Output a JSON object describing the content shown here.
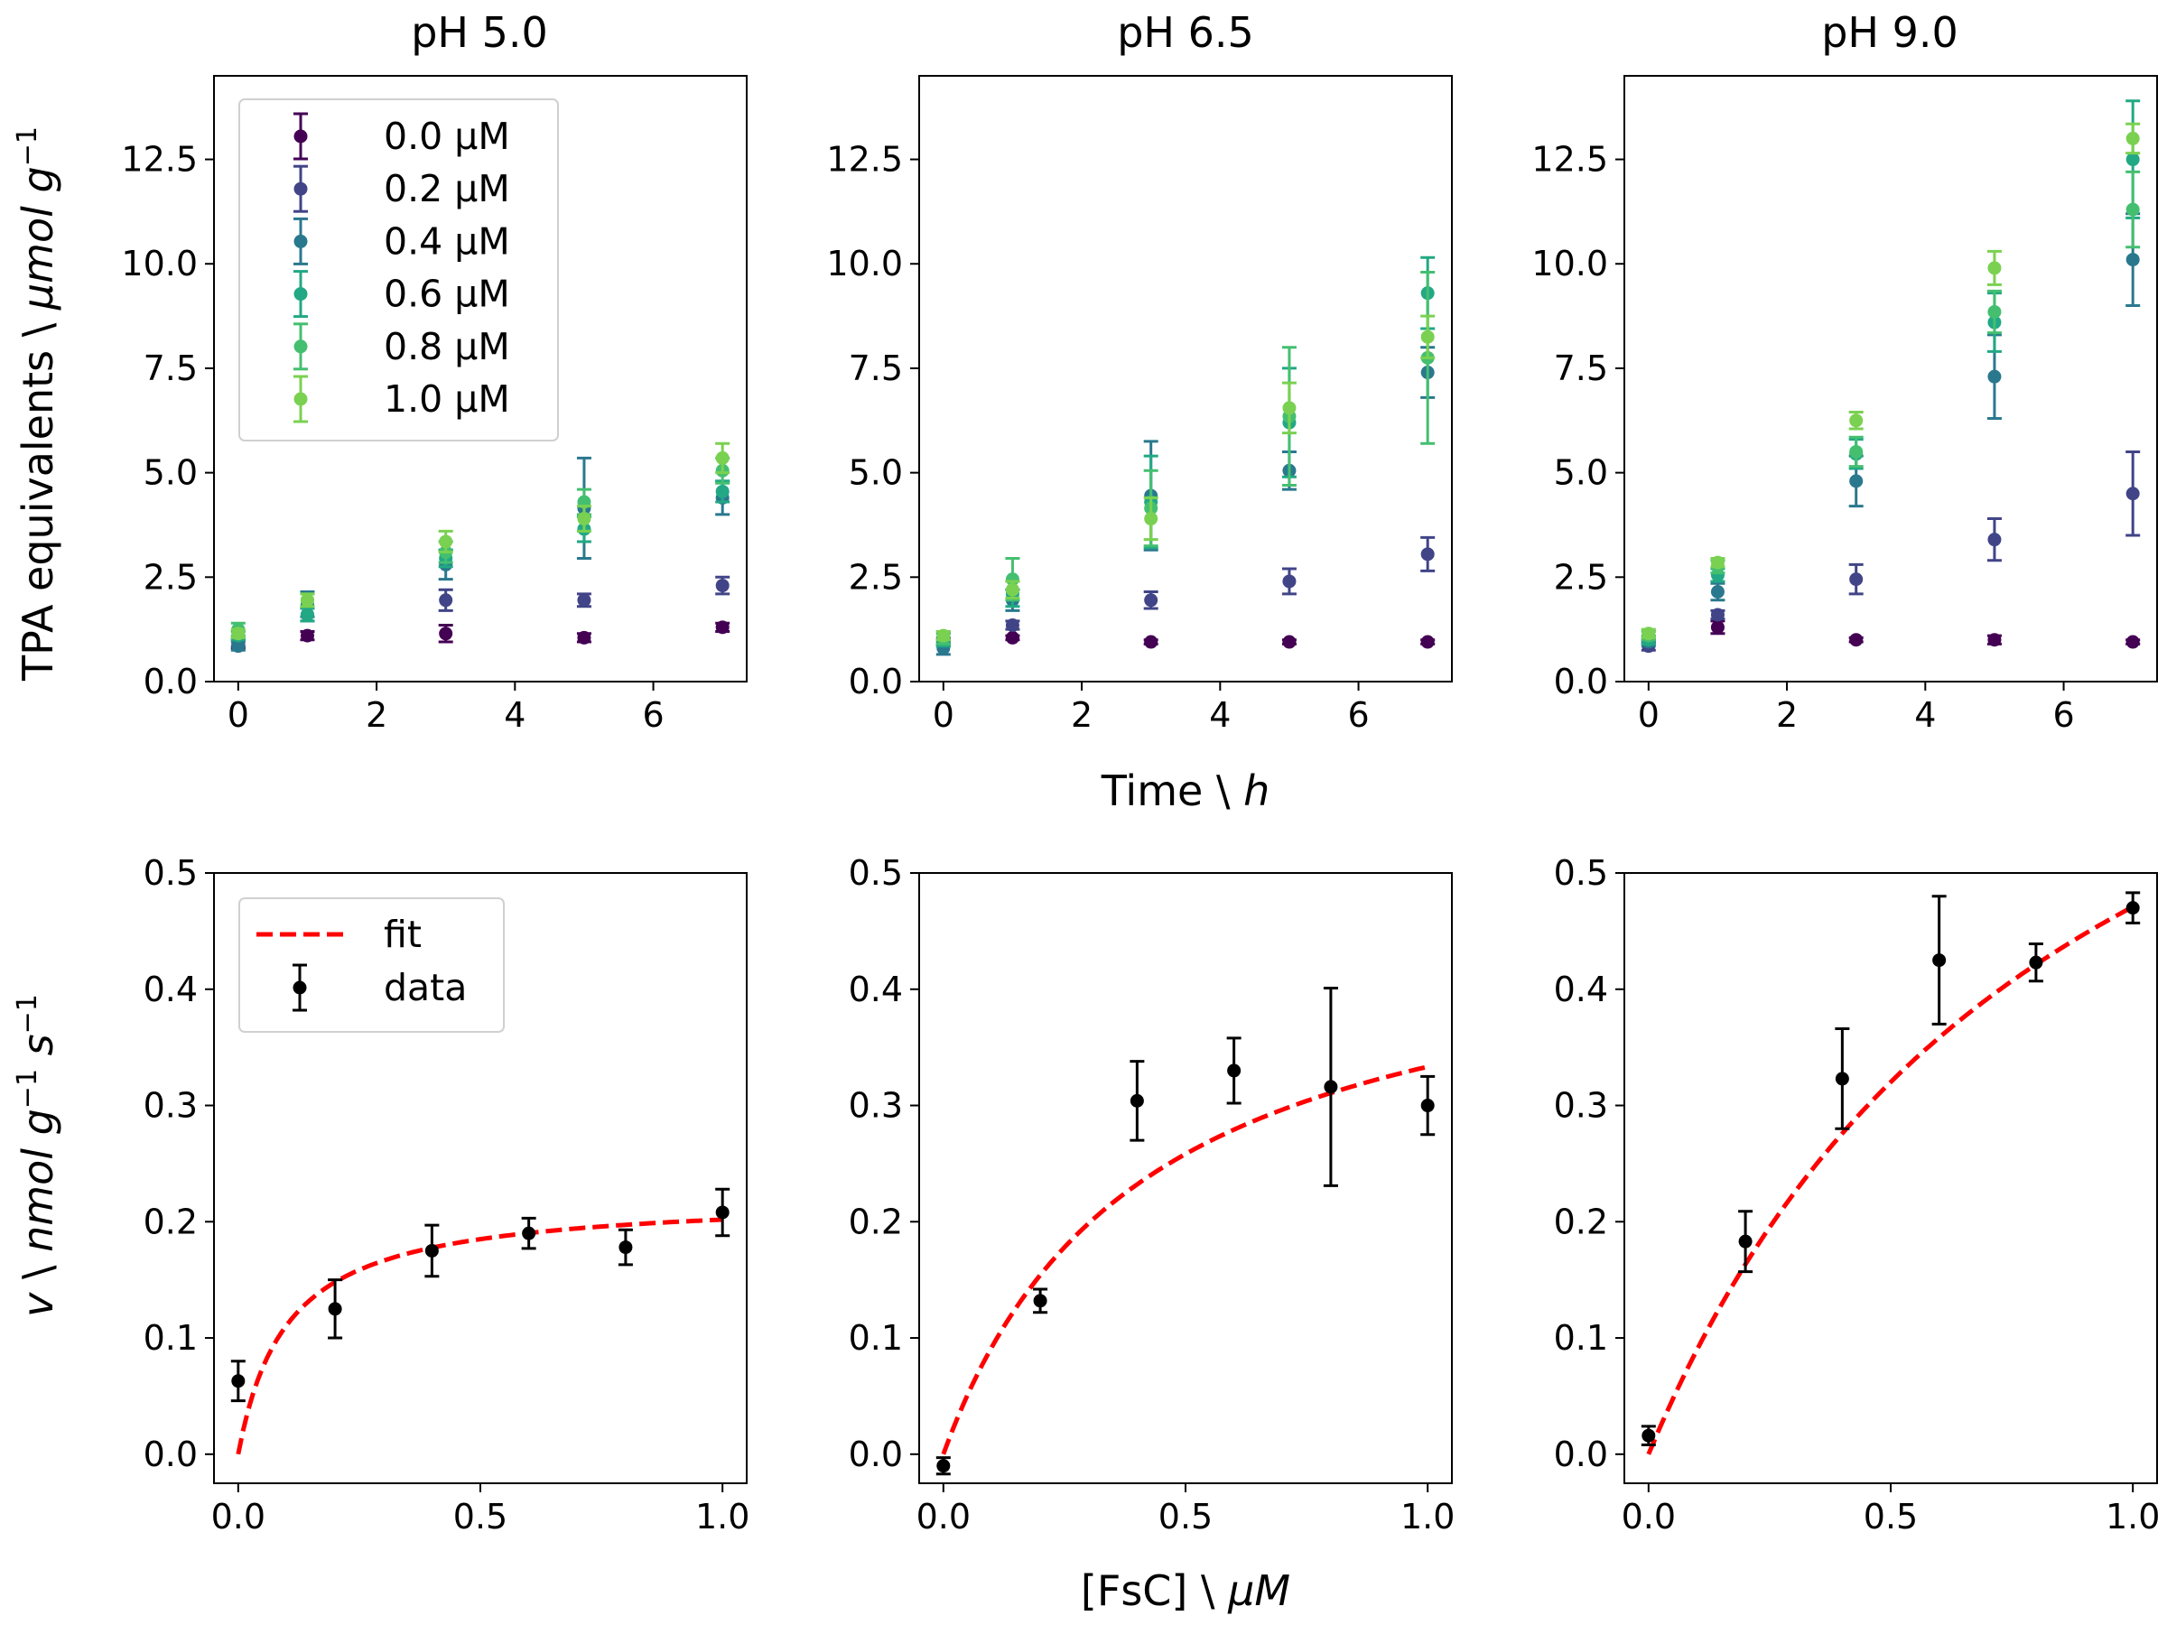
{
  "figure": {
    "top_ylabel": "TPA equivalents \\ ",
    "top_ylabel_it": "µmol g",
    "top_ylabel_sup": "−1",
    "top_xlabel": "Time \\ ",
    "top_xlabel_it": "h",
    "bottom_ylabel_it1": "v",
    "bottom_ylabel_mid": " \\ ",
    "bottom_ylabel_it2": "nmol g",
    "bottom_ylabel_sup1": "−1",
    "bottom_ylabel_it3": " s",
    "bottom_ylabel_sup2": "−1",
    "bottom_xlabel": "[FsC] \\ ",
    "bottom_xlabel_it": "µM"
  },
  "colors": {
    "0.0 µM": "#440154",
    "0.2 µM": "#414487",
    "0.4 µM": "#2a788e",
    "0.6 µM": "#22a884",
    "0.8 µM": "#44bf70",
    "1.0 µM": "#7ad151",
    "data": "#000000",
    "fit": "#ff0000"
  },
  "chart_data": [
    {
      "type": "scatter",
      "title": "pH 5.0",
      "xlabel": "Time \\ h",
      "ylabel": "TPA equivalents \\ µmol g−1",
      "xlim": [
        -0.35,
        7.35
      ],
      "ylim": [
        0,
        14.5
      ],
      "xticks": [
        "0",
        "2",
        "4",
        "6"
      ],
      "yticks": [
        "0.0",
        "2.5",
        "5.0",
        "7.5",
        "10.0",
        "12.5"
      ],
      "legend": "upper-left",
      "legend_entries": [
        "0.0 µM",
        "0.2 µM",
        "0.4 µM",
        "0.6 µM",
        "0.8 µM",
        "1.0 µM"
      ],
      "x": [
        0,
        1,
        3,
        5,
        7
      ],
      "series": [
        {
          "name": "0.0 µM",
          "y": [
            0.9,
            1.1,
            1.15,
            1.05,
            1.3
          ],
          "err": [
            0.1,
            0.1,
            0.2,
            0.1,
            0.1
          ]
        },
        {
          "name": "0.2 µM",
          "y": [
            0.95,
            1.6,
            1.95,
            1.95,
            2.3
          ],
          "err": [
            0.1,
            0.15,
            0.25,
            0.15,
            0.2
          ]
        },
        {
          "name": "0.4 µM",
          "y": [
            0.85,
            1.85,
            2.8,
            4.15,
            4.4
          ],
          "err": [
            0.1,
            0.3,
            0.35,
            1.2,
            0.4
          ]
        },
        {
          "name": "0.6 µM",
          "y": [
            1.1,
            1.6,
            2.95,
            3.65,
            4.55
          ],
          "err": [
            0.1,
            0.15,
            0.2,
            0.3,
            0.25
          ]
        },
        {
          "name": "0.8 µM",
          "y": [
            1.25,
            1.95,
            3.1,
            4.3,
            5.05
          ],
          "err": [
            0.15,
            0.15,
            0.25,
            0.3,
            0.3
          ]
        },
        {
          "name": "1.0 µM",
          "y": [
            1.15,
            1.95,
            3.35,
            3.9,
            5.35
          ],
          "err": [
            0.1,
            0.15,
            0.25,
            0.3,
            0.35
          ]
        }
      ]
    },
    {
      "type": "scatter",
      "title": "pH 6.5",
      "xlim": [
        -0.35,
        7.35
      ],
      "ylim": [
        0,
        14.5
      ],
      "xticks": [
        "0",
        "2",
        "4",
        "6"
      ],
      "yticks": [
        "0.0",
        "2.5",
        "5.0",
        "7.5",
        "10.0",
        "12.5"
      ],
      "x": [
        0,
        1,
        3,
        5,
        7
      ],
      "series": [
        {
          "name": "0.0 µM",
          "y": [
            0.95,
            1.05,
            0.95,
            0.95,
            0.95
          ],
          "err": [
            0.05,
            0.05,
            0.05,
            0.05,
            0.05
          ]
        },
        {
          "name": "0.2 µM",
          "y": [
            0.95,
            1.35,
            1.95,
            2.4,
            3.05
          ],
          "err": [
            0.1,
            0.1,
            0.2,
            0.3,
            0.4
          ]
        },
        {
          "name": "0.4 µM",
          "y": [
            0.8,
            1.95,
            4.45,
            5.05,
            7.4
          ],
          "err": [
            0.15,
            0.25,
            1.3,
            0.45,
            0.6
          ]
        },
        {
          "name": "0.6 µM",
          "y": [
            1.0,
            2.1,
            4.3,
            6.2,
            9.3
          ],
          "err": [
            0.15,
            0.3,
            1.1,
            1.3,
            0.85
          ]
        },
        {
          "name": "0.8 µM",
          "y": [
            1.05,
            2.45,
            4.15,
            6.35,
            7.75
          ],
          "err": [
            0.15,
            0.5,
            0.9,
            1.65,
            2.05
          ]
        },
        {
          "name": "1.0 µM",
          "y": [
            1.1,
            2.2,
            3.9,
            6.55,
            8.25
          ],
          "err": [
            0.1,
            0.2,
            0.5,
            0.6,
            0.5
          ]
        }
      ]
    },
    {
      "type": "scatter",
      "title": "pH 9.0",
      "xlim": [
        -0.35,
        7.35
      ],
      "ylim": [
        0,
        14.5
      ],
      "xticks": [
        "0",
        "2",
        "4",
        "6"
      ],
      "yticks": [
        "0.0",
        "2.5",
        "5.0",
        "7.5",
        "10.0",
        "12.5"
      ],
      "x": [
        0,
        1,
        3,
        5,
        7
      ],
      "series": [
        {
          "name": "0.0 µM",
          "y": [
            0.95,
            1.3,
            1.0,
            1.0,
            0.95
          ],
          "err": [
            0.05,
            0.15,
            0.05,
            0.1,
            0.05
          ]
        },
        {
          "name": "0.2 µM",
          "y": [
            0.85,
            1.6,
            2.45,
            3.4,
            4.5
          ],
          "err": [
            0.1,
            0.1,
            0.35,
            0.5,
            1.0
          ]
        },
        {
          "name": "0.4 µM",
          "y": [
            0.95,
            2.15,
            4.8,
            7.3,
            10.1
          ],
          "err": [
            0.1,
            0.2,
            0.6,
            1.0,
            1.1
          ]
        },
        {
          "name": "0.6 µM",
          "y": [
            1.0,
            2.55,
            5.45,
            8.6,
            12.5
          ],
          "err": [
            0.1,
            0.15,
            0.35,
            0.7,
            1.4
          ]
        },
        {
          "name": "0.8 µM",
          "y": [
            1.1,
            2.75,
            5.5,
            8.85,
            11.3
          ],
          "err": [
            0.1,
            0.15,
            0.35,
            0.5,
            0.9
          ]
        },
        {
          "name": "1.0 µM",
          "y": [
            1.15,
            2.85,
            6.25,
            9.9,
            13.0
          ],
          "err": [
            0.1,
            0.1,
            0.2,
            0.4,
            0.35
          ]
        }
      ]
    },
    {
      "type": "scatter",
      "xlabel": "[FsC] \\ µM",
      "ylabel": "v \\ nmol g−1 s−1",
      "xlim": [
        -0.05,
        1.05
      ],
      "ylim": [
        -0.025,
        0.5
      ],
      "xticks": [
        "0.0",
        "0.5",
        "1.0"
      ],
      "yticks": [
        "0.0",
        "0.1",
        "0.2",
        "0.3",
        "0.4",
        "0.5"
      ],
      "legend": "upper-left",
      "legend_entries": [
        "fit",
        "data"
      ],
      "x": [
        0.0,
        0.2,
        0.4,
        0.6,
        0.8,
        1.0
      ],
      "series": [
        {
          "name": "data",
          "y": [
            0.063,
            0.125,
            0.175,
            0.19,
            0.178,
            0.208
          ],
          "err": [
            0.017,
            0.025,
            0.022,
            0.013,
            0.015,
            0.02
          ]
        }
      ],
      "fit": {
        "name": "fit",
        "vmax": 0.222,
        "km": 0.1
      }
    },
    {
      "type": "scatter",
      "xlim": [
        -0.05,
        1.05
      ],
      "ylim": [
        -0.025,
        0.5
      ],
      "xticks": [
        "0.0",
        "0.5",
        "1.0"
      ],
      "yticks": [
        "0.0",
        "0.1",
        "0.2",
        "0.3",
        "0.4",
        "0.5"
      ],
      "x": [
        0.0,
        0.2,
        0.4,
        0.6,
        0.8,
        1.0
      ],
      "series": [
        {
          "name": "data",
          "y": [
            -0.01,
            0.132,
            0.304,
            0.33,
            0.316,
            0.3
          ],
          "err": [
            0.007,
            0.01,
            0.034,
            0.028,
            0.085,
            0.025
          ]
        }
      ],
      "fit": {
        "name": "fit",
        "vmax": 0.47,
        "km": 0.41
      }
    },
    {
      "type": "scatter",
      "xlim": [
        -0.05,
        1.05
      ],
      "ylim": [
        -0.025,
        0.5
      ],
      "xticks": [
        "0.0",
        "0.5",
        "1.0"
      ],
      "yticks": [
        "0.0",
        "0.1",
        "0.2",
        "0.3",
        "0.4",
        "0.5"
      ],
      "x": [
        0.0,
        0.2,
        0.4,
        0.6,
        0.8,
        1.0
      ],
      "series": [
        {
          "name": "data",
          "y": [
            0.016,
            0.183,
            0.323,
            0.425,
            0.423,
            0.47
          ],
          "err": [
            0.008,
            0.026,
            0.043,
            0.055,
            0.016,
            0.013
          ]
        }
      ],
      "fit": {
        "name": "fit",
        "vmax": 0.89,
        "km": 0.89
      }
    }
  ]
}
